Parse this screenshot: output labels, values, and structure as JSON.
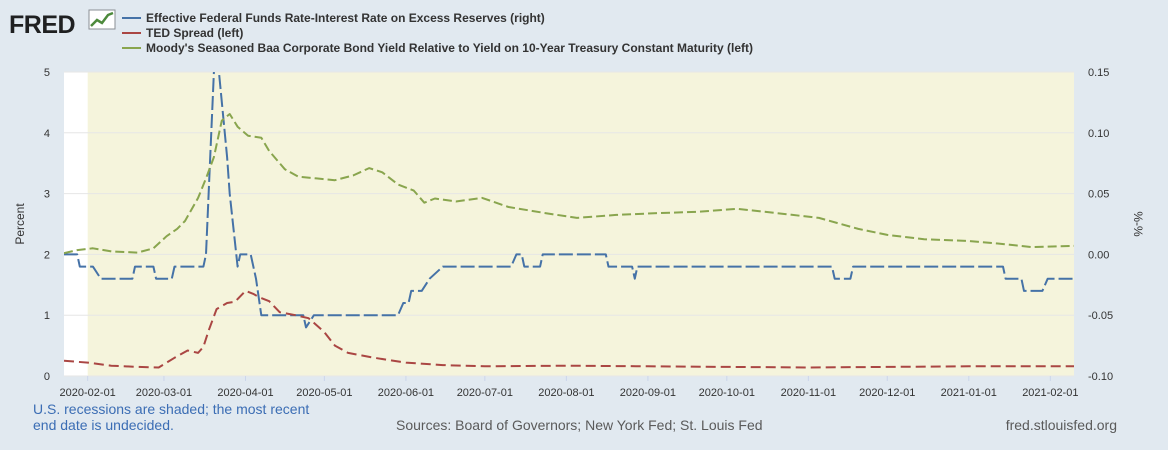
{
  "logo": {
    "text": "FRED",
    "icon": "trend-graph-icon"
  },
  "colors": {
    "background": "#e1e9f0",
    "plot_area": "#f5f4dc",
    "grid": "#e6e6e6",
    "series_effr": "#4572a7",
    "series_ted": "#aa4643",
    "series_baa": "#89a54e",
    "note": "#3b6db4",
    "sources": "#5a5a5a"
  },
  "footer": {
    "note_line1": "U.S. recessions are shaded; the most recent",
    "note_line2": "end date is undecided.",
    "sources": "Sources: Board of Governors; New York Fed; St. Louis Fed",
    "site": "fred.stlouisfed.org"
  },
  "chart_data": {
    "type": "line",
    "legend_position": "top-left",
    "legend": [
      "Effective Federal Funds Rate-Interest Rate on Excess Reserves (right)",
      "TED Spread (left)",
      "Moody's Seasoned Baa Corporate Bond Yield Relative to Yield on 10-Year Treasury Constant Maturity (left)"
    ],
    "ylabel_left": "Percent",
    "ylabel_right": "%-%",
    "ylim_left": [
      0,
      5
    ],
    "ylim_right": [
      -0.1,
      0.15
    ],
    "yticks_left": [
      "0",
      "1",
      "2",
      "3",
      "4",
      "5"
    ],
    "yticks_right": [
      "-0.10",
      "-0.05",
      "0.00",
      "0.05",
      "0.10",
      "0.15"
    ],
    "xlim": [
      "2020-01-23",
      "2021-02-10"
    ],
    "recession": {
      "start": "2020-02-01",
      "end": null
    },
    "xticks": [
      "2020-02-01",
      "2020-03-01",
      "2020-04-01",
      "2020-05-01",
      "2020-06-01",
      "2020-07-01",
      "2020-08-01",
      "2020-09-01",
      "2020-10-01",
      "2020-11-01",
      "2020-12-01",
      "2021-01-01",
      "2021-02-01"
    ],
    "series": [
      {
        "name": "Effective Federal Funds Rate-Interest Rate on Excess Reserves (right)",
        "axis": "right",
        "style": "dashed",
        "points": [
          [
            "2020-01-23",
            0.0
          ],
          [
            "2020-01-28",
            0.0
          ],
          [
            "2020-01-29",
            -0.01
          ],
          [
            "2020-02-03",
            -0.01
          ],
          [
            "2020-02-06",
            -0.02
          ],
          [
            "2020-02-18",
            -0.02
          ],
          [
            "2020-02-19",
            -0.01
          ],
          [
            "2020-02-26",
            -0.01
          ],
          [
            "2020-02-27",
            -0.02
          ],
          [
            "2020-03-04",
            -0.02
          ],
          [
            "2020-03-05",
            -0.01
          ],
          [
            "2020-03-16",
            -0.01
          ],
          [
            "2020-03-17",
            0.0
          ],
          [
            "2020-03-20",
            0.15
          ],
          [
            "2020-03-21",
            0.17
          ],
          [
            "2020-03-25",
            0.08
          ],
          [
            "2020-03-26",
            0.05
          ],
          [
            "2020-03-29",
            -0.01
          ],
          [
            "2020-03-30",
            0.0
          ],
          [
            "2020-04-03",
            0.0
          ],
          [
            "2020-04-05",
            -0.02
          ],
          [
            "2020-04-07",
            -0.05
          ],
          [
            "2020-04-23",
            -0.05
          ],
          [
            "2020-04-24",
            -0.06
          ],
          [
            "2020-04-27",
            -0.05
          ],
          [
            "2020-05-29",
            -0.05
          ],
          [
            "2020-05-31",
            -0.04
          ],
          [
            "2020-06-02",
            -0.04
          ],
          [
            "2020-06-03",
            -0.03
          ],
          [
            "2020-06-07",
            -0.03
          ],
          [
            "2020-06-10",
            -0.02
          ],
          [
            "2020-06-15",
            -0.01
          ],
          [
            "2020-06-30",
            -0.01
          ],
          [
            "2020-07-01",
            -0.01
          ],
          [
            "2020-07-11",
            -0.01
          ],
          [
            "2020-07-13",
            0.0
          ],
          [
            "2020-07-15",
            0.0
          ],
          [
            "2020-07-16",
            -0.01
          ],
          [
            "2020-07-22",
            -0.01
          ],
          [
            "2020-07-23",
            0.0
          ],
          [
            "2020-08-16",
            0.0
          ],
          [
            "2020-08-17",
            -0.01
          ],
          [
            "2020-08-26",
            -0.01
          ],
          [
            "2020-08-27",
            -0.02
          ],
          [
            "2020-08-28",
            -0.01
          ],
          [
            "2020-11-10",
            -0.01
          ],
          [
            "2020-11-11",
            -0.02
          ],
          [
            "2020-11-17",
            -0.02
          ],
          [
            "2020-11-18",
            -0.01
          ],
          [
            "2021-01-14",
            -0.01
          ],
          [
            "2021-01-15",
            -0.02
          ],
          [
            "2021-01-21",
            -0.02
          ],
          [
            "2021-01-22",
            -0.03
          ],
          [
            "2021-01-29",
            -0.03
          ],
          [
            "2021-01-31",
            -0.02
          ],
          [
            "2021-02-10",
            -0.02
          ]
        ]
      },
      {
        "name": "TED Spread (left)",
        "axis": "left",
        "style": "dashed",
        "points": [
          [
            "2020-01-23",
            0.25
          ],
          [
            "2020-02-01",
            0.22
          ],
          [
            "2020-02-10",
            0.17
          ],
          [
            "2020-02-20",
            0.15
          ],
          [
            "2020-02-28",
            0.14
          ],
          [
            "2020-03-05",
            0.3
          ],
          [
            "2020-03-10",
            0.42
          ],
          [
            "2020-03-14",
            0.38
          ],
          [
            "2020-03-16",
            0.48
          ],
          [
            "2020-03-18",
            0.75
          ],
          [
            "2020-03-21",
            1.1
          ],
          [
            "2020-03-25",
            1.2
          ],
          [
            "2020-03-28",
            1.22
          ],
          [
            "2020-04-01",
            1.4
          ],
          [
            "2020-04-04",
            1.35
          ],
          [
            "2020-04-06",
            1.3
          ],
          [
            "2020-04-10",
            1.23
          ],
          [
            "2020-04-14",
            1.05
          ],
          [
            "2020-04-20",
            1.0
          ],
          [
            "2020-04-25",
            0.95
          ],
          [
            "2020-05-01",
            0.72
          ],
          [
            "2020-05-05",
            0.5
          ],
          [
            "2020-05-10",
            0.38
          ],
          [
            "2020-05-20",
            0.3
          ],
          [
            "2020-06-01",
            0.22
          ],
          [
            "2020-06-15",
            0.18
          ],
          [
            "2020-07-01",
            0.16
          ],
          [
            "2020-08-01",
            0.17
          ],
          [
            "2020-09-01",
            0.16
          ],
          [
            "2020-10-01",
            0.15
          ],
          [
            "2020-11-01",
            0.14
          ],
          [
            "2020-12-01",
            0.15
          ],
          [
            "2021-01-01",
            0.16
          ],
          [
            "2021-02-10",
            0.16
          ]
        ]
      },
      {
        "name": "Moody's Seasoned Baa Corporate Bond Yield Relative to Yield on 10-Year Treasury Constant Maturity (left)",
        "axis": "left",
        "style": "dashed",
        "points": [
          [
            "2020-01-23",
            2.02
          ],
          [
            "2020-01-28",
            2.07
          ],
          [
            "2020-02-03",
            2.1
          ],
          [
            "2020-02-10",
            2.05
          ],
          [
            "2020-02-20",
            2.03
          ],
          [
            "2020-02-26",
            2.1
          ],
          [
            "2020-03-02",
            2.3
          ],
          [
            "2020-03-06",
            2.42
          ],
          [
            "2020-03-09",
            2.55
          ],
          [
            "2020-03-14",
            2.93
          ],
          [
            "2020-03-17",
            3.25
          ],
          [
            "2020-03-20",
            3.6
          ],
          [
            "2020-03-23",
            4.2
          ],
          [
            "2020-03-26",
            4.31
          ],
          [
            "2020-03-29",
            4.1
          ],
          [
            "2020-04-02",
            3.95
          ],
          [
            "2020-04-07",
            3.92
          ],
          [
            "2020-04-10",
            3.7
          ],
          [
            "2020-04-16",
            3.4
          ],
          [
            "2020-04-21",
            3.28
          ],
          [
            "2020-04-28",
            3.25
          ],
          [
            "2020-05-05",
            3.22
          ],
          [
            "2020-05-12",
            3.3
          ],
          [
            "2020-05-18",
            3.42
          ],
          [
            "2020-05-23",
            3.35
          ],
          [
            "2020-05-29",
            3.15
          ],
          [
            "2020-06-04",
            3.05
          ],
          [
            "2020-06-08",
            2.85
          ],
          [
            "2020-06-12",
            2.92
          ],
          [
            "2020-06-20",
            2.87
          ],
          [
            "2020-06-30",
            2.93
          ],
          [
            "2020-07-10",
            2.78
          ],
          [
            "2020-07-24",
            2.68
          ],
          [
            "2020-08-05",
            2.6
          ],
          [
            "2020-08-20",
            2.65
          ],
          [
            "2020-09-05",
            2.68
          ],
          [
            "2020-09-20",
            2.7
          ],
          [
            "2020-10-05",
            2.75
          ],
          [
            "2020-10-20",
            2.68
          ],
          [
            "2020-11-05",
            2.6
          ],
          [
            "2020-11-20",
            2.42
          ],
          [
            "2020-12-01",
            2.32
          ],
          [
            "2020-12-15",
            2.25
          ],
          [
            "2021-01-01",
            2.22
          ],
          [
            "2021-01-12",
            2.18
          ],
          [
            "2021-01-25",
            2.12
          ],
          [
            "2021-02-10",
            2.14
          ]
        ]
      }
    ]
  }
}
